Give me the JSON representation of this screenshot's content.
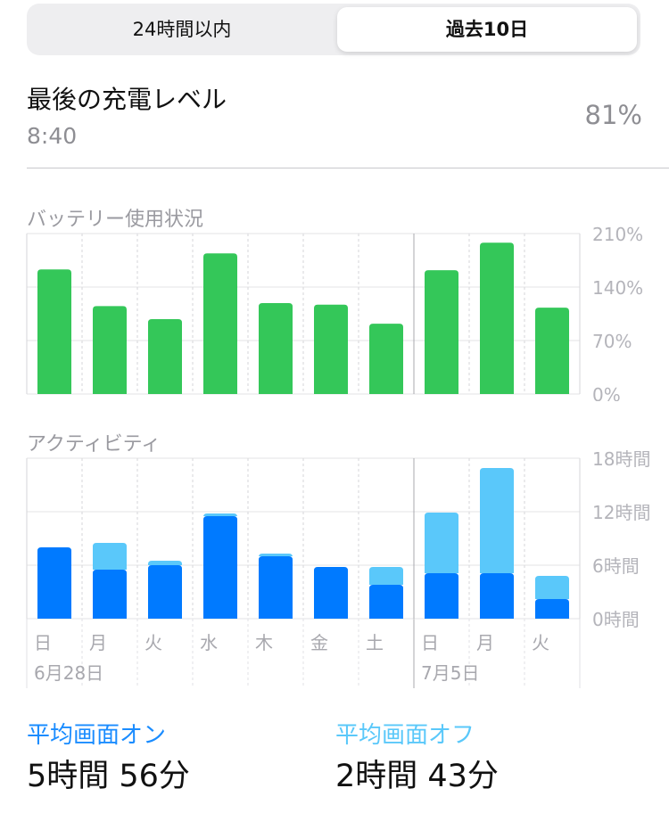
{
  "segment": {
    "tab_24h": "24時間以内",
    "tab_10d": "過去10日"
  },
  "last_charge": {
    "title": "最後の充電レベル",
    "time": "8:40",
    "percent": "81%"
  },
  "colors": {
    "battery_bar": "#34c759",
    "screen_on": "#007aff",
    "screen_off": "#5ac8fa",
    "label_gray": "#9a9aa0",
    "accent_on": "#1a8cff",
    "accent_off": "#5ac8fa"
  },
  "battery_chart": {
    "label": "バッテリー使用状況"
  },
  "activity_chart": {
    "label": "アクティビティ"
  },
  "chart_data": [
    {
      "type": "bar",
      "title": "バッテリー使用状況",
      "categories": [
        "日",
        "月",
        "火",
        "水",
        "木",
        "金",
        "土",
        "日",
        "月",
        "火"
      ],
      "values": [
        163,
        115,
        98,
        184,
        119,
        117,
        92,
        162,
        198,
        113
      ],
      "ylim": [
        0,
        210
      ],
      "y_ticks": [
        "210%",
        "140%",
        "70%",
        "0%"
      ],
      "y_tick_values": [
        210,
        140,
        70,
        0
      ],
      "grid": true
    },
    {
      "type": "bar",
      "title": "アクティビティ",
      "stacked": true,
      "categories": [
        "日",
        "月",
        "火",
        "水",
        "木",
        "金",
        "土",
        "日",
        "月",
        "火"
      ],
      "series": [
        {
          "name": "平均画面オン",
          "values": [
            8.0,
            5.5,
            6.0,
            11.5,
            7.0,
            5.8,
            3.8,
            5.1,
            5.1,
            2.2
          ]
        },
        {
          "name": "平均画面オフ",
          "values": [
            0,
            3.0,
            0.5,
            0.3,
            0.3,
            0,
            2.0,
            6.8,
            11.8,
            2.6
          ]
        }
      ],
      "ylim": [
        0,
        18
      ],
      "y_ticks": [
        "18時間",
        "12時間",
        "6時間",
        "0時間"
      ],
      "y_tick_values": [
        18,
        12,
        6,
        0
      ],
      "week_labels": [
        "6月28日",
        "7月5日"
      ],
      "grid": true
    }
  ],
  "footer": {
    "on_label": "平均画面オン",
    "on_value": "5時間 56分",
    "off_label": "平均画面オフ",
    "off_value": "2時間 43分"
  }
}
